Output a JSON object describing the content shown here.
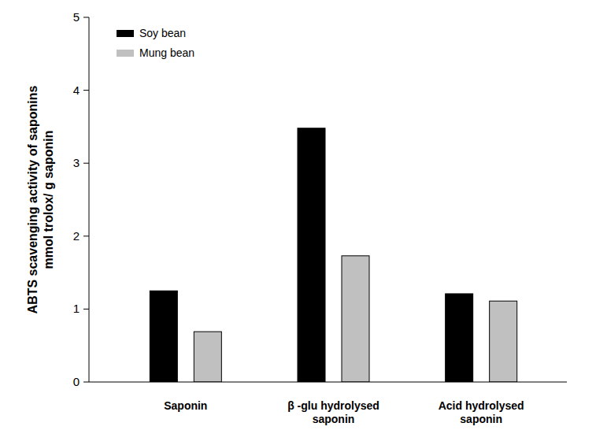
{
  "chart_data": {
    "type": "bar",
    "y_label": "ABTS scavenging activity of saponins\nmmol trolox/ g saponin",
    "categories": [
      "Saponin",
      "β -glu hydrolysed\nsaponin",
      "Acid hydrolysed\nsaponin"
    ],
    "series": [
      {
        "name": "Soy bean",
        "color": "#000000",
        "values": [
          1.25,
          3.48,
          1.21
        ]
      },
      {
        "name": "Mung bean",
        "color": "#c0c0c0",
        "values": [
          0.69,
          1.73,
          1.11
        ]
      }
    ],
    "ylim": [
      0,
      5
    ],
    "yticks": [
      0,
      1,
      2,
      3,
      4,
      5
    ],
    "legend": "upper left",
    "grid": false
  }
}
